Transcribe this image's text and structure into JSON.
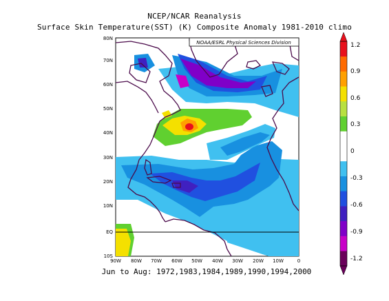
{
  "header": {
    "title": "NCEP/NCAR Reanalysis",
    "subtitle": "Surface Skin Temperature(SST) (K) Composite Anomaly 1981-2010 climo"
  },
  "map": {
    "credit": "NOAA/ESRL Physical Sciences Division",
    "lat_ticks": [
      "80N",
      "70N",
      "60N",
      "50N",
      "40N",
      "30N",
      "20N",
      "10N",
      "EQ",
      "10S"
    ],
    "lon_ticks": [
      "90W",
      "80W",
      "70W",
      "60W",
      "50W",
      "40W",
      "30W",
      "20W",
      "10W",
      "0"
    ],
    "region": "North Atlantic, 90W–0, 10S–80N"
  },
  "colorbar": {
    "labels": [
      "1.2",
      "0.9",
      "0.6",
      "0.3",
      "0",
      "-0.3",
      "-0.6",
      "-0.9",
      "-1.2"
    ],
    "colors": [
      "#e8101c",
      "#ff6a00",
      "#ffa000",
      "#f4e000",
      "#b8e040",
      "#60d030",
      "#ffffff",
      "#ffffff",
      "#40c0f0",
      "#1890e0",
      "#2050e0",
      "#4020c0",
      "#8000c8",
      "#c800c8",
      "#6a005a"
    ]
  },
  "footer": {
    "composite_text": "Jun to Aug: 1972,1983,1984,1989,1990,1994,2000"
  }
}
